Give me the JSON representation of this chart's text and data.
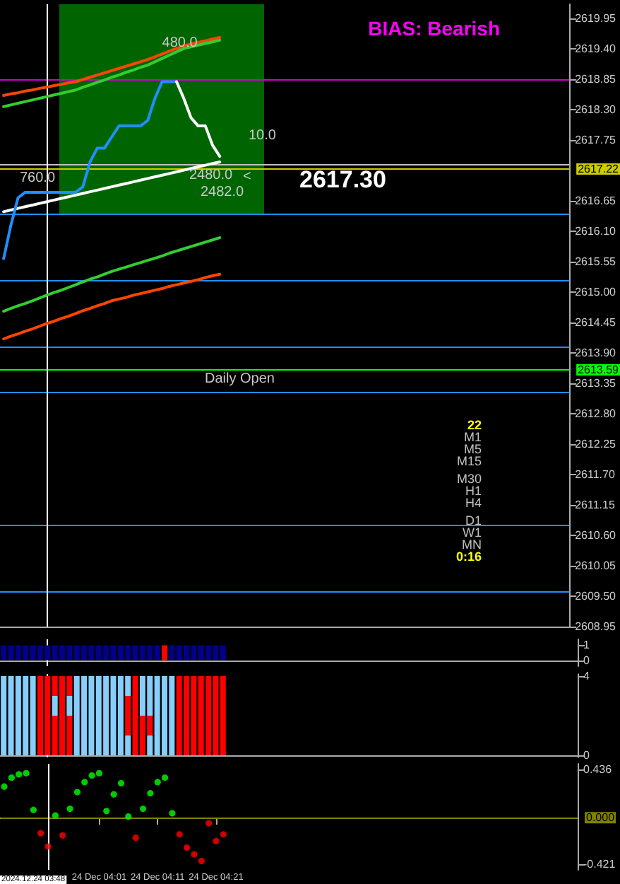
{
  "chart_data": [
    {
      "type": "line",
      "title": "BIAS: Bearish",
      "ylim": [
        2608.95,
        2620.2
      ],
      "tick_labels": "y",
      "marker": "none",
      "line_style": "solid",
      "categories": [
        null,
        null,
        null,
        null,
        null,
        null,
        null,
        null,
        null,
        null,
        null,
        null,
        null,
        null,
        null,
        null,
        null,
        null,
        null,
        null,
        null,
        null,
        null,
        null,
        null,
        null,
        null,
        null,
        null,
        null,
        null,
        null,
        null,
        null,
        null,
        null,
        null,
        null,
        null,
        null,
        null,
        null,
        null,
        null,
        null,
        null,
        null,
        null,
        null,
        null,
        null,
        null,
        null,
        null,
        null,
        null,
        null,
        null,
        null,
        null,
        null,
        null,
        null,
        null,
        null,
        null,
        null,
        null,
        null,
        null,
        null,
        null,
        null,
        null,
        null,
        null,
        null,
        null,
        null
      ],
      "yticks": [
        {
          "value": 2608.95,
          "label": "2608.95"
        },
        {
          "value": 2609.5,
          "label": "2609.50"
        },
        {
          "value": 2610.05,
          "label": "2610.05"
        },
        {
          "value": 2610.6,
          "label": "2610.60"
        },
        {
          "value": 2611.15,
          "label": "2611.15"
        },
        {
          "value": 2611.7,
          "label": "2611.70"
        },
        {
          "value": 2612.25,
          "label": "2612.25"
        },
        {
          "value": 2612.8,
          "label": "2612.80"
        },
        {
          "value": 2613.35,
          "label": "2613.35"
        },
        {
          "value": 2613.9,
          "label": "2613.90"
        },
        {
          "value": 2614.45,
          "label": "2614.45"
        },
        {
          "value": 2615.0,
          "label": "2615.00"
        },
        {
          "value": 2615.55,
          "label": "2615.55"
        },
        {
          "value": 2616.1,
          "label": "2616.10"
        },
        {
          "value": 2616.65,
          "label": "2616.65"
        },
        {
          "value": 2617.75,
          "label": "2617.75"
        },
        {
          "value": 2618.3,
          "label": "2618.30"
        },
        {
          "value": 2618.85,
          "label": "2618.85"
        },
        {
          "value": 2619.4,
          "label": "2619.40"
        },
        {
          "value": 2619.95,
          "label": "2619.95"
        }
      ],
      "series": [
        {
          "color": "#ff4500",
          "values": [
            2614.15,
            2614.2,
            2614.24,
            2614.29,
            2614.33,
            2614.38,
            2614.43,
            2614.47,
            2614.52,
            2614.56,
            2614.61,
            2614.66,
            2614.7,
            2614.75,
            2614.79,
            2614.84,
            2614.87,
            2614.9,
            2614.94,
            2614.97,
            2615.0,
            2615.03,
            2615.06,
            2615.1,
            2615.13,
            2615.16,
            2615.19,
            2615.22,
            2615.26,
            2615.29,
            2615.32,
            null,
            null,
            null,
            null,
            null,
            null,
            null,
            null,
            null,
            null,
            null,
            null,
            null,
            null,
            null,
            null,
            null,
            null,
            null,
            null,
            null,
            null,
            null,
            null,
            null,
            null,
            null,
            null,
            null,
            null,
            null,
            null,
            null,
            null,
            null,
            null,
            null,
            null,
            null,
            null,
            null,
            null,
            null,
            null,
            null,
            null,
            null,
            null
          ]
        },
        {
          "color": "#32cd32",
          "values": [
            2614.65,
            2614.7,
            2614.75,
            2614.79,
            2614.84,
            2614.89,
            2614.94,
            2614.99,
            2615.03,
            2615.08,
            2615.13,
            2615.18,
            2615.23,
            2615.27,
            2615.32,
            2615.37,
            2615.41,
            2615.45,
            2615.49,
            2615.53,
            2615.57,
            2615.61,
            2615.65,
            2615.7,
            2615.74,
            2615.78,
            2615.82,
            2615.86,
            2615.9,
            2615.94,
            2615.98,
            null,
            null,
            null,
            null,
            null,
            null,
            null,
            null,
            null,
            null,
            null,
            null,
            null,
            null,
            null,
            null,
            null,
            null,
            null,
            null,
            null,
            null,
            null,
            null,
            null,
            null,
            null,
            null,
            null,
            null,
            null,
            null,
            null,
            null,
            null,
            null,
            null,
            null,
            null,
            null,
            null,
            null,
            null,
            null,
            null,
            null,
            null,
            null
          ]
        },
        {
          "color": "#ff4500",
          "values": [
            2618.55,
            2618.58,
            2618.6,
            2618.63,
            2618.65,
            2618.68,
            2618.7,
            2618.73,
            2618.75,
            2618.78,
            2618.8,
            2618.84,
            2618.88,
            2618.92,
            2618.96,
            2619.0,
            2619.04,
            2619.08,
            2619.12,
            2619.16,
            2619.2,
            2619.25,
            2619.3,
            2619.35,
            2619.4,
            2619.45,
            2619.48,
            2619.51,
            2619.54,
            2619.57,
            2619.6,
            null,
            null,
            null,
            null,
            null,
            null,
            null,
            null,
            null,
            null,
            null,
            null,
            null,
            null,
            null,
            null,
            null,
            null,
            null,
            null,
            null,
            null,
            null,
            null,
            null,
            null,
            null,
            null,
            null,
            null,
            null,
            null,
            null,
            null,
            null,
            null,
            null,
            null,
            null,
            null,
            null,
            null,
            null,
            null,
            null,
            null,
            null,
            null
          ]
        },
        {
          "color": "#32cd32",
          "values": [
            2618.35,
            2618.38,
            2618.41,
            2618.44,
            2618.47,
            2618.5,
            2618.53,
            2618.56,
            2618.59,
            2618.62,
            2618.65,
            2618.7,
            2618.74,
            2618.79,
            2618.83,
            2618.88,
            2618.92,
            2618.97,
            2619.01,
            2619.06,
            2619.1,
            2619.16,
            2619.22,
            2619.28,
            2619.34,
            2619.4,
            2619.43,
            2619.46,
            2619.49,
            2619.52,
            2619.55,
            null,
            null,
            null,
            null,
            null,
            null,
            null,
            null,
            null,
            null,
            null,
            null,
            null,
            null,
            null,
            null,
            null,
            null,
            null,
            null,
            null,
            null,
            null,
            null,
            null,
            null,
            null,
            null,
            null,
            null,
            null,
            null,
            null,
            null,
            null,
            null,
            null,
            null,
            null,
            null,
            null,
            null,
            null,
            null,
            null,
            null,
            null,
            null
          ]
        },
        {
          "color": "#ffffff",
          "values": [
            2616.45,
            2616.48,
            2616.51,
            2616.54,
            2616.57,
            2616.6,
            2616.63,
            2616.66,
            2616.69,
            2616.72,
            2616.75,
            2616.78,
            2616.81,
            2616.84,
            2616.87,
            2616.9,
            2616.93,
            2616.96,
            2616.99,
            2617.02,
            2617.05,
            2617.08,
            2617.11,
            2617.14,
            2617.17,
            2617.2,
            2617.23,
            2617.26,
            2617.29,
            2617.32,
            2617.35,
            null,
            null,
            null,
            null,
            null,
            null,
            null,
            null,
            null,
            null,
            null,
            null,
            null,
            null,
            null,
            null,
            null,
            null,
            null,
            null,
            null,
            null,
            null,
            null,
            null,
            null,
            null,
            null,
            null,
            null,
            null,
            null,
            null,
            null,
            null,
            null,
            null,
            null,
            null,
            null,
            null,
            null,
            null,
            null,
            null,
            null,
            null,
            null
          ]
        },
        {
          "color": "#1e90ff",
          "values": [
            2615.6,
            2616.2,
            2616.7,
            2616.8,
            2616.8,
            2616.8,
            2616.8,
            2616.8,
            2616.8,
            2616.8,
            2616.8,
            2616.9,
            2617.35,
            2617.6,
            2617.6,
            2617.8,
            2618.0,
            2618.0,
            2618.0,
            2618.0,
            2618.1,
            2618.5,
            2618.8,
            2618.8,
            2618.8,
            null,
            null,
            null,
            null,
            null,
            null,
            null,
            null,
            null,
            null,
            null,
            null,
            null,
            null,
            null,
            null,
            null,
            null,
            null,
            null,
            null,
            null,
            null,
            null,
            null,
            null,
            null,
            null,
            null,
            null,
            null,
            null,
            null,
            null,
            null,
            null,
            null,
            null,
            null,
            null,
            null,
            null,
            null,
            null,
            null,
            null,
            null,
            null,
            null,
            null,
            null,
            null,
            null,
            null
          ]
        },
        {
          "color": "#ffffff",
          "values": [
            null,
            null,
            null,
            null,
            null,
            null,
            null,
            null,
            null,
            null,
            null,
            null,
            null,
            null,
            null,
            null,
            null,
            null,
            null,
            null,
            null,
            null,
            null,
            null,
            2618.8,
            2618.5,
            2618.15,
            2618.0,
            2618.0,
            2617.65,
            2617.45,
            null,
            null,
            null,
            null,
            null,
            null,
            null,
            null,
            null,
            null,
            null,
            null,
            null,
            null,
            null,
            null,
            null,
            null,
            null,
            null,
            null,
            null,
            null,
            null,
            null,
            null,
            null,
            null,
            null,
            null,
            null,
            null,
            null,
            null,
            null,
            null,
            null,
            null,
            null,
            null,
            null,
            null,
            null,
            null,
            null,
            null,
            null,
            null
          ]
        }
      ],
      "ref_lines": [
        {
          "axis": "y",
          "value": 2616.4,
          "color": "#1e90ff"
        },
        {
          "axis": "y",
          "value": 2615.2,
          "color": "#1e90ff"
        },
        {
          "axis": "y",
          "value": 2614.0,
          "color": "#1e90ff"
        },
        {
          "axis": "y",
          "value": 2613.59,
          "label": "2613.59",
          "color": "#00ff00"
        },
        {
          "axis": "y",
          "value": 2613.2,
          "color": "#1e90ff"
        },
        {
          "axis": "y",
          "value": 2610.78,
          "color": "#1e90ff"
        },
        {
          "axis": "y",
          "value": 2609.58,
          "color": "#1e90ff"
        },
        {
          "axis": "y",
          "value": 2618.85,
          "color": "#cc00cc"
        },
        {
          "axis": "y",
          "value": 2617.22,
          "label": "2617.22",
          "color": "#cccc00"
        },
        {
          "axis": "y",
          "value": 2617.3,
          "color": "#c0c0c0"
        }
      ],
      "annotations": [
        {
          "text": "480.0",
          "y": 2619.5
        },
        "760.0",
        "2480.0",
        "2482.0",
        "10.0",
        "<",
        "Daily Open",
        "2617.30",
        "22",
        "M1",
        "M5",
        "M15",
        "M30",
        "H1",
        "H4",
        "D1",
        "W1",
        "MN",
        "0:16"
      ]
    },
    {
      "type": "bar",
      "ylim": [
        -0.4,
        1.4
      ],
      "yticks": [
        0,
        1
      ],
      "tick_labels": "y",
      "categories": [
        null,
        null,
        null,
        null,
        null,
        null,
        null,
        null,
        null,
        null,
        null,
        null,
        null,
        null,
        null,
        null,
        null,
        null,
        null,
        null,
        null,
        null,
        null,
        null,
        null,
        null,
        null,
        null,
        null,
        null,
        null,
        null,
        null,
        null,
        null,
        null,
        null,
        null,
        null,
        null,
        null,
        null,
        null,
        null,
        null,
        null,
        null,
        null,
        null,
        null,
        null,
        null,
        null,
        null,
        null,
        null,
        null,
        null,
        null,
        null,
        null,
        null,
        null,
        null,
        null,
        null,
        null,
        null,
        null,
        null,
        null,
        null,
        null,
        null,
        null,
        null,
        null,
        null,
        null
      ],
      "series": [
        {
          "values": [
            1,
            1,
            1,
            1,
            1,
            1,
            1,
            1,
            1,
            1,
            1,
            1,
            1,
            1,
            1,
            1,
            1,
            1,
            1,
            1,
            1,
            1,
            1,
            1,
            1,
            1,
            1,
            1,
            1,
            1,
            1,
            null,
            null,
            null,
            null,
            null,
            null,
            null,
            null,
            null,
            null,
            null,
            null,
            null,
            null,
            null,
            null,
            null,
            null,
            null,
            null,
            null,
            null,
            null,
            null,
            null,
            null,
            null,
            null,
            null,
            null,
            null,
            null,
            null,
            null,
            null,
            null,
            null,
            null,
            null,
            null,
            null,
            null,
            null,
            null,
            null,
            null,
            null,
            null
          ],
          "colors": [
            "#00008b",
            "#00008b",
            "#00008b",
            "#00008b",
            "#00008b",
            "#00008b",
            "#00008b",
            "#00008b",
            "#00008b",
            "#00008b",
            "#00008b",
            "#00008b",
            "#00008b",
            "#00008b",
            "#00008b",
            "#00008b",
            "#00008b",
            "#00008b",
            "#00008b",
            "#00008b",
            "#00008b",
            "#00008b",
            "#ff0000",
            "#00008b",
            "#00008b",
            "#00008b",
            "#00008b",
            "#00008b",
            "#00008b",
            "#00008b",
            "#00008b",
            null,
            null,
            null,
            null,
            null,
            null,
            null,
            null,
            null,
            null,
            null,
            null,
            null,
            null,
            null,
            null,
            null,
            null,
            null,
            null,
            null,
            null,
            null,
            null,
            null,
            null,
            null,
            null,
            null,
            null,
            null,
            null,
            null,
            null,
            null,
            null,
            null,
            null,
            null,
            null,
            null,
            null,
            null,
            null,
            null,
            null,
            null,
            null
          ]
        }
      ]
    },
    {
      "type": "bar",
      "stacked": true,
      "ylim": [
        -0.1,
        4.1
      ],
      "yticks": [
        0,
        4
      ],
      "tick_labels": "y",
      "categories": [
        null,
        null,
        null,
        null,
        null,
        null,
        null,
        null,
        null,
        null,
        null,
        null,
        null,
        null,
        null,
        null,
        null,
        null,
        null,
        null,
        null,
        null,
        null,
        null,
        null,
        null,
        null,
        null,
        null,
        null,
        null,
        null,
        null,
        null,
        null,
        null,
        null,
        null,
        null,
        null,
        null,
        null,
        null,
        null,
        null,
        null,
        null,
        null,
        null,
        null,
        null,
        null,
        null,
        null,
        null,
        null,
        null,
        null,
        null,
        null,
        null,
        null,
        null,
        null,
        null,
        null,
        null,
        null,
        null,
        null,
        null,
        null,
        null,
        null,
        null,
        null,
        null,
        null,
        null
      ],
      "series": [
        {
          "values": [
            1,
            1,
            1,
            1,
            1,
            1,
            1,
            1,
            1,
            1,
            1,
            1,
            1,
            1,
            1,
            1,
            1,
            1,
            1,
            1,
            1,
            1,
            1,
            1,
            1,
            1,
            1,
            1,
            1,
            1,
            1,
            null,
            null,
            null,
            null,
            null,
            null,
            null,
            null,
            null,
            null,
            null,
            null,
            null,
            null,
            null,
            null,
            null,
            null,
            null,
            null,
            null,
            null,
            null,
            null,
            null,
            null,
            null,
            null,
            null,
            null,
            null,
            null,
            null,
            null,
            null,
            null,
            null,
            null,
            null,
            null,
            null,
            null,
            null,
            null,
            null,
            null,
            null,
            null
          ],
          "colors": [
            "#87cefa",
            "#87cefa",
            "#87cefa",
            "#87cefa",
            "#87cefa",
            "#ff0000",
            "#ff0000",
            "#ff0000",
            "#ff0000",
            "#ff0000",
            "#87cefa",
            "#87cefa",
            "#87cefa",
            "#87cefa",
            "#87cefa",
            "#87cefa",
            "#87cefa",
            "#87cefa",
            "#ff0000",
            "#ff0000",
            "#87cefa",
            "#87cefa",
            "#87cefa",
            "#87cefa",
            "#ff0000",
            "#ff0000",
            "#ff0000",
            "#ff0000",
            "#ff0000",
            "#ff0000",
            "#ff0000",
            null,
            null,
            null,
            null,
            null,
            null,
            null,
            null,
            null,
            null,
            null,
            null,
            null,
            null,
            null,
            null,
            null,
            null,
            null,
            null,
            null,
            null,
            null,
            null,
            null,
            null,
            null,
            null,
            null,
            null,
            null,
            null,
            null,
            null,
            null,
            null,
            null,
            null,
            null,
            null,
            null,
            null,
            null,
            null,
            null,
            null,
            null,
            null
          ]
        },
        {
          "values": [
            1,
            1,
            1,
            1,
            1,
            1,
            1,
            1,
            1,
            1,
            1,
            1,
            1,
            1,
            1,
            1,
            1,
            1,
            1,
            1,
            1,
            1,
            1,
            1,
            1,
            1,
            1,
            1,
            1,
            1,
            1,
            null,
            null,
            null,
            null,
            null,
            null,
            null,
            null,
            null,
            null,
            null,
            null,
            null,
            null,
            null,
            null,
            null,
            null,
            null,
            null,
            null,
            null,
            null,
            null,
            null,
            null,
            null,
            null,
            null,
            null,
            null,
            null,
            null,
            null,
            null,
            null,
            null,
            null,
            null,
            null,
            null,
            null,
            null,
            null,
            null,
            null,
            null,
            null
          ],
          "colors": [
            "#87cefa",
            "#87cefa",
            "#87cefa",
            "#87cefa",
            "#87cefa",
            "#ff0000",
            "#ff0000",
            "#ff0000",
            "#ff0000",
            "#ff0000",
            "#87cefa",
            "#87cefa",
            "#87cefa",
            "#87cefa",
            "#87cefa",
            "#87cefa",
            "#87cefa",
            "#ff0000",
            "#ff0000",
            "#ff0000",
            "#ff0000",
            "#87cefa",
            "#87cefa",
            "#87cefa",
            "#ff0000",
            "#ff0000",
            "#ff0000",
            "#ff0000",
            "#ff0000",
            "#ff0000",
            "#ff0000",
            null,
            null,
            null,
            null,
            null,
            null,
            null,
            null,
            null,
            null,
            null,
            null,
            null,
            null,
            null,
            null,
            null,
            null,
            null,
            null,
            null,
            null,
            null,
            null,
            null,
            null,
            null,
            null,
            null,
            null,
            null,
            null,
            null,
            null,
            null,
            null,
            null,
            null,
            null,
            null,
            null,
            null,
            null,
            null,
            null,
            null,
            null,
            null
          ]
        },
        {
          "values": [
            1,
            1,
            1,
            1,
            1,
            1,
            1,
            1,
            1,
            1,
            1,
            1,
            1,
            1,
            1,
            1,
            1,
            1,
            1,
            1,
            1,
            1,
            1,
            1,
            1,
            1,
            1,
            1,
            1,
            1,
            1,
            null,
            null,
            null,
            null,
            null,
            null,
            null,
            null,
            null,
            null,
            null,
            null,
            null,
            null,
            null,
            null,
            null,
            null,
            null,
            null,
            null,
            null,
            null,
            null,
            null,
            null,
            null,
            null,
            null,
            null,
            null,
            null,
            null,
            null,
            null,
            null,
            null,
            null,
            null,
            null,
            null,
            null,
            null,
            null,
            null,
            null,
            null,
            null
          ],
          "colors": [
            "#87cefa",
            "#87cefa",
            "#87cefa",
            "#87cefa",
            "#87cefa",
            "#ff0000",
            "#ff0000",
            "#87cefa",
            "#ff0000",
            "#87cefa",
            "#87cefa",
            "#87cefa",
            "#87cefa",
            "#87cefa",
            "#87cefa",
            "#87cefa",
            "#87cefa",
            "#ff0000",
            "#ff0000",
            "#87cefa",
            "#87cefa",
            "#87cefa",
            "#87cefa",
            "#87cefa",
            "#ff0000",
            "#ff0000",
            "#ff0000",
            "#ff0000",
            "#ff0000",
            "#ff0000",
            "#ff0000",
            null,
            null,
            null,
            null,
            null,
            null,
            null,
            null,
            null,
            null,
            null,
            null,
            null,
            null,
            null,
            null,
            null,
            null,
            null,
            null,
            null,
            null,
            null,
            null,
            null,
            null,
            null,
            null,
            null,
            null,
            null,
            null,
            null,
            null,
            null,
            null,
            null,
            null,
            null,
            null,
            null,
            null,
            null,
            null,
            null,
            null,
            null,
            null
          ]
        },
        {
          "values": [
            1,
            1,
            1,
            1,
            1,
            1,
            1,
            1,
            1,
            1,
            1,
            1,
            1,
            1,
            1,
            1,
            1,
            1,
            1,
            1,
            1,
            1,
            1,
            1,
            1,
            1,
            1,
            1,
            1,
            1,
            1,
            null,
            null,
            null,
            null,
            null,
            null,
            null,
            null,
            null,
            null,
            null,
            null,
            null,
            null,
            null,
            null,
            null,
            null,
            null,
            null,
            null,
            null,
            null,
            null,
            null,
            null,
            null,
            null,
            null,
            null,
            null,
            null,
            null,
            null,
            null,
            null,
            null,
            null,
            null,
            null,
            null,
            null,
            null,
            null,
            null,
            null,
            null,
            null
          ],
          "colors": [
            "#87cefa",
            "#87cefa",
            "#87cefa",
            "#87cefa",
            "#87cefa",
            "#ff0000",
            "#ff0000",
            "#ff0000",
            "#ff0000",
            "#ff0000",
            "#87cefa",
            "#87cefa",
            "#87cefa",
            "#87cefa",
            "#87cefa",
            "#87cefa",
            "#87cefa",
            "#87cefa",
            "#ff0000",
            "#87cefa",
            "#87cefa",
            "#87cefa",
            "#87cefa",
            "#87cefa",
            "#ff0000",
            "#ff0000",
            "#ff0000",
            "#ff0000",
            "#ff0000",
            "#ff0000",
            "#ff0000",
            null,
            null,
            null,
            null,
            null,
            null,
            null,
            null,
            null,
            null,
            null,
            null,
            null,
            null,
            null,
            null,
            null,
            null,
            null,
            null,
            null,
            null,
            null,
            null,
            null,
            null,
            null,
            null,
            null,
            null,
            null,
            null,
            null,
            null,
            null,
            null,
            null,
            null,
            null,
            null,
            null,
            null,
            null,
            null,
            null,
            null,
            null,
            null
          ]
        }
      ]
    },
    {
      "type": "scatter",
      "marker": "circle",
      "ylim": [
        -0.47,
        0.485
      ],
      "yticks": [
        -0.421,
        0.436
      ],
      "categories": [
        null,
        null,
        null,
        null,
        null,
        null,
        null,
        null,
        null,
        null,
        null,
        null,
        null,
        "24 Dec 04:01",
        null,
        null,
        null,
        null,
        null,
        null,
        null,
        "24 Dec 04:11",
        null,
        null,
        null,
        null,
        null,
        null,
        null,
        "24 Dec 04:21",
        null,
        null,
        null,
        null,
        null,
        null,
        null,
        null,
        null,
        null,
        null,
        null,
        null,
        null,
        null,
        null,
        null,
        null,
        null,
        null,
        null,
        null,
        null,
        null,
        null,
        null,
        null,
        null,
        null,
        null,
        null,
        null,
        null,
        null,
        null,
        null,
        null,
        null,
        null,
        null,
        null,
        null,
        null,
        null,
        null,
        null,
        null,
        null,
        null
      ],
      "series": [
        {
          "values": [
            0.28,
            0.36,
            0.39,
            0.4,
            0.07,
            -0.14,
            -0.26,
            0.02,
            -0.16,
            0.08,
            0.23,
            0.32,
            0.38,
            0.4,
            0.06,
            0.21,
            0.31,
            0.01,
            -0.18,
            0.08,
            0.22,
            0.32,
            0.36,
            0.04,
            -0.15,
            -0.27,
            -0.33,
            -0.39,
            -0.05,
            -0.21,
            -0.15,
            null,
            null,
            null,
            null,
            null,
            null,
            null,
            null,
            null,
            null,
            null,
            null,
            null,
            null,
            null,
            null,
            null,
            null,
            null,
            null,
            null,
            null,
            null,
            null,
            null,
            null,
            null,
            null,
            null,
            null,
            null,
            null,
            null,
            null,
            null,
            null,
            null,
            null,
            null,
            null,
            null,
            null,
            null,
            null,
            null,
            null,
            null,
            null
          ],
          "colors": [
            "#00ff00",
            "#00ff00",
            "#00ff00",
            "#00ff00",
            "#00ff00",
            "#ff0000",
            "#ff0000",
            "#00ff00",
            "#ff0000",
            "#00ff00",
            "#00ff00",
            "#00ff00",
            "#00ff00",
            "#00ff00",
            "#00ff00",
            "#00ff00",
            "#00ff00",
            "#00ff00",
            "#ff0000",
            "#00ff00",
            "#00ff00",
            "#00ff00",
            "#00ff00",
            "#00ff00",
            "#ff0000",
            "#ff0000",
            "#ff0000",
            "#ff0000",
            "#ff0000",
            "#ff0000",
            "#ff0000",
            null,
            null,
            null,
            null,
            null,
            null,
            null,
            null,
            null,
            null,
            null,
            null,
            null,
            null,
            null,
            null,
            null,
            null,
            null,
            null,
            null,
            null,
            null,
            null,
            null,
            null,
            null,
            null,
            null,
            null,
            null,
            null,
            null,
            null,
            null,
            null,
            null,
            null,
            null,
            null,
            null,
            null,
            null,
            null,
            null,
            null,
            null,
            null
          ]
        }
      ],
      "ref_lines": [
        {
          "axis": "y",
          "value": 0,
          "label": "0.000",
          "color": "#808000"
        }
      ],
      "annotations": [
        "2024.12.24 03:48"
      ]
    }
  ]
}
